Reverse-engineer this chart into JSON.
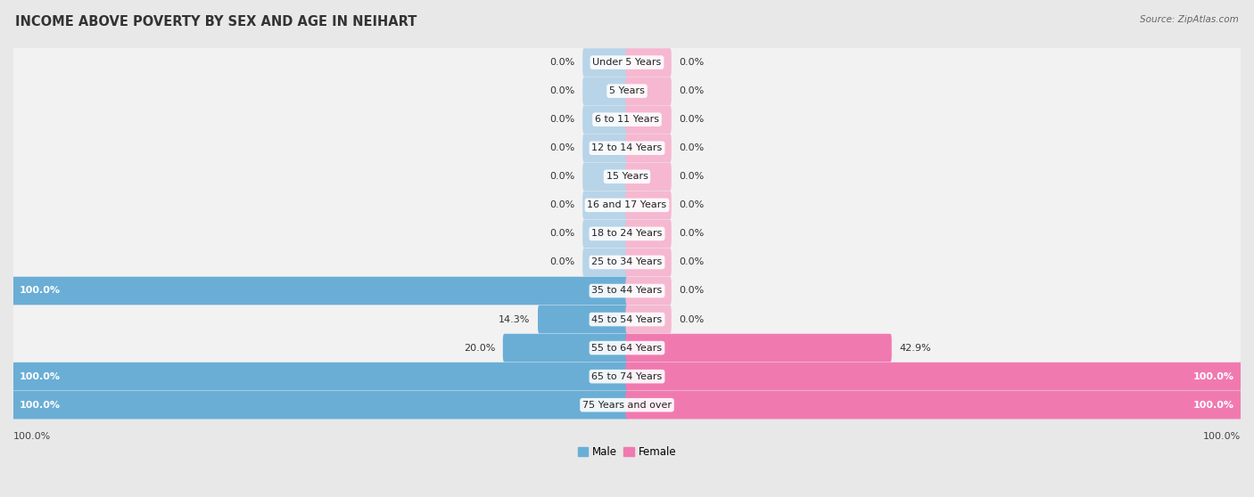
{
  "title": "INCOME ABOVE POVERTY BY SEX AND AGE IN NEIHART",
  "source": "Source: ZipAtlas.com",
  "categories": [
    "Under 5 Years",
    "5 Years",
    "6 to 11 Years",
    "12 to 14 Years",
    "15 Years",
    "16 and 17 Years",
    "18 to 24 Years",
    "25 to 34 Years",
    "35 to 44 Years",
    "45 to 54 Years",
    "55 to 64 Years",
    "65 to 74 Years",
    "75 Years and over"
  ],
  "male_values": [
    0.0,
    0.0,
    0.0,
    0.0,
    0.0,
    0.0,
    0.0,
    0.0,
    100.0,
    14.3,
    20.0,
    100.0,
    100.0
  ],
  "female_values": [
    0.0,
    0.0,
    0.0,
    0.0,
    0.0,
    0.0,
    0.0,
    0.0,
    0.0,
    0.0,
    42.9,
    100.0,
    100.0
  ],
  "male_color": "#6aaed6",
  "female_color": "#f07ab0",
  "male_stub_color": "#b8d4e8",
  "female_stub_color": "#f5b8d0",
  "male_label": "Male",
  "female_label": "Female",
  "axis_label_bottom": "100.0%",
  "bg_color": "#e8e8e8",
  "row_bg_color": "#f2f2f2",
  "row_border_color": "#d0d0d0",
  "max_value": 100.0,
  "title_fontsize": 10.5,
  "label_fontsize": 8,
  "category_fontsize": 8,
  "stub_size": 7.0
}
